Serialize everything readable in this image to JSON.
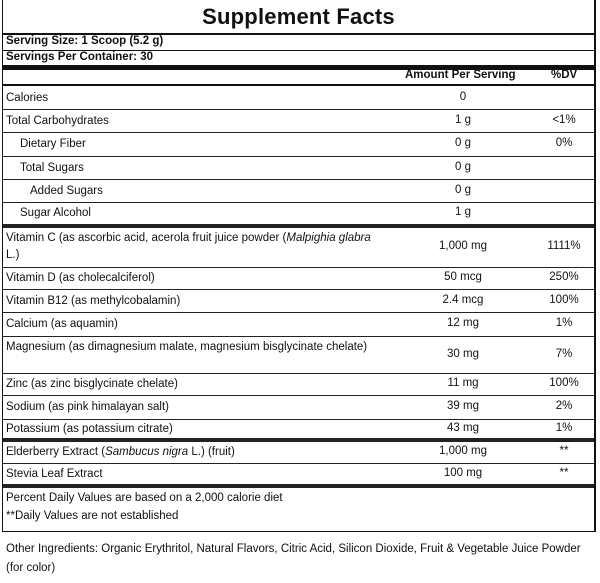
{
  "title": "Supplement Facts",
  "serving_size": "Serving Size: 1 Scoop (5.2 g)",
  "servings_per_container": "Servings Per Container: 30",
  "header": {
    "amount": "Amount Per Serving",
    "dv": "%DV"
  },
  "rows": [
    {
      "name": "Calories",
      "amount": "0",
      "dv": ""
    },
    {
      "name": "Total Carbohydrates",
      "amount": "1 g",
      "dv": "<1%"
    },
    {
      "name": "Dietary Fiber",
      "amount": "0 g",
      "dv": "0%"
    },
    {
      "name": "Total Sugars",
      "amount": "0 g",
      "dv": ""
    },
    {
      "name": "Added Sugars",
      "amount": "0 g",
      "dv": ""
    },
    {
      "name": "Sugar Alcohol",
      "amount": "1 g",
      "dv": ""
    },
    {
      "name_pre": "Vitamin C (as ascorbic acid, acerola fruit juice powder (",
      "name_italic": "Malpighia glabra",
      "name_post": " L.)",
      "amount": "1,000 mg",
      "dv": "1111%"
    },
    {
      "name": "Vitamin D (as cholecalciferol)",
      "amount": "50 mcg",
      "dv": "250%"
    },
    {
      "name": "Vitamin B12 (as methylcobalamin)",
      "amount": "2.4 mcg",
      "dv": "100%"
    },
    {
      "name": "Calcium (as aquamin)",
      "amount": "12 mg",
      "dv": "1%"
    },
    {
      "name": "Magnesium (as dimagnesium malate, magnesium bisglycinate chelate)",
      "amount": "30 mg",
      "dv": "7%"
    },
    {
      "name": "Zinc (as zinc bisglycinate chelate)",
      "amount": "11 mg",
      "dv": "100%"
    },
    {
      "name": "Sodium (as pink himalayan salt)",
      "amount": "39 mg",
      "dv": "2%"
    },
    {
      "name": "Potassium (as potassium citrate)",
      "amount": "43 mg",
      "dv": "1%"
    },
    {
      "name_pre": "Elderberry Extract (",
      "name_italic": "Sambucus nigra",
      "name_post": "  L.) (fruit)",
      "amount": "1,000 mg",
      "dv": "**"
    },
    {
      "name": "Stevia Leaf Extract",
      "amount": "100 mg",
      "dv": "**"
    }
  ],
  "footnotes": [
    "Percent Daily Values are based on a 2,000 calorie diet",
    "**Daily Values are not established"
  ],
  "other_ingredients": "Other Ingredients: Organic Erythritol, Natural Flavors, Citric Acid, Silicon Dioxide, Fruit & Vegetable Juice Powder (for color)"
}
